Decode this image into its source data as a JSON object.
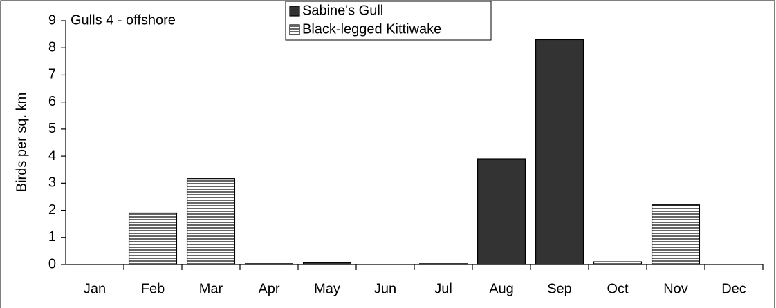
{
  "chart_data": {
    "type": "bar",
    "title": "Gulls 4 - offshore",
    "y_label": "Birds per sq. km",
    "categories": [
      "Jan",
      "Feb",
      "Mar",
      "Apr",
      "May",
      "Jun",
      "Jul",
      "Aug",
      "Sep",
      "Oct",
      "Nov",
      "Dec"
    ],
    "series": [
      {
        "name": "Sabine's Gull",
        "color": "#333333",
        "values": [
          null,
          null,
          null,
          0.03,
          0.07,
          null,
          0.03,
          3.9,
          8.3,
          null,
          null,
          null
        ]
      },
      {
        "name": "Black-legged Kittiwake",
        "color": "#000000",
        "pattern": "horizontal-lines",
        "values": [
          null,
          1.9,
          3.17,
          null,
          null,
          null,
          null,
          null,
          null,
          0.1,
          2.2,
          null
        ]
      }
    ],
    "ylim": [
      0,
      9
    ],
    "yticks": [
      0,
      1,
      2,
      3,
      4,
      5,
      6,
      7,
      8,
      9
    ],
    "legend": "top"
  }
}
